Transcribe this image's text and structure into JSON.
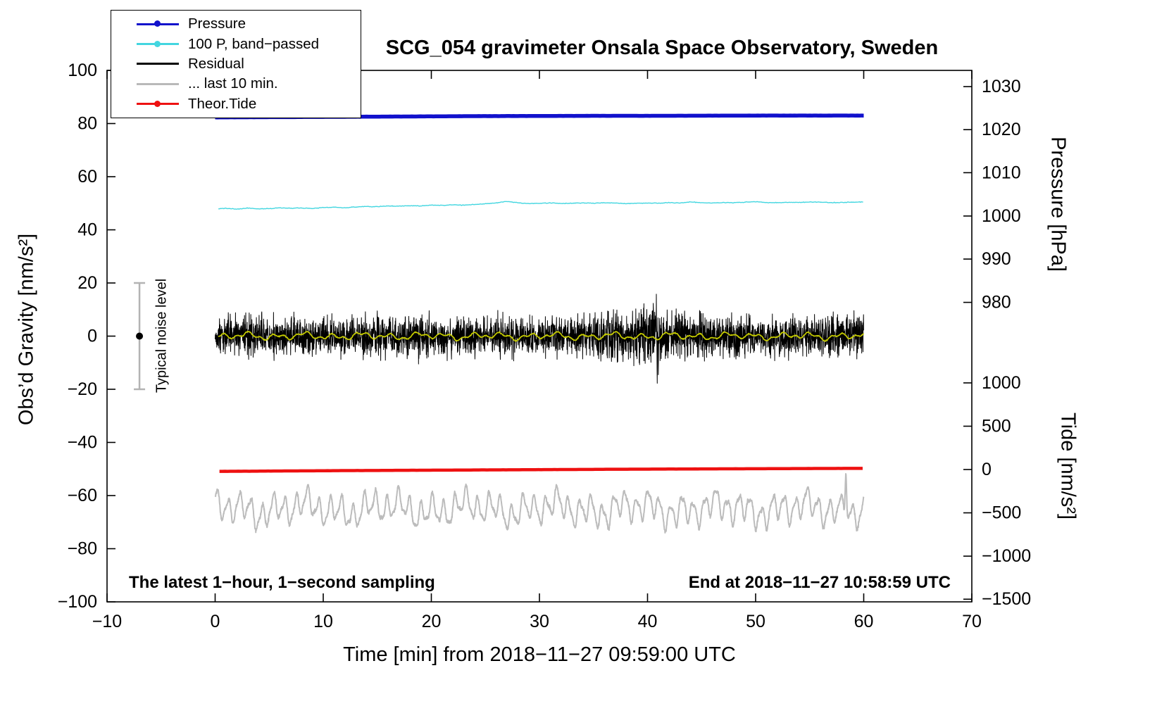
{
  "chart_data": {
    "type": "line",
    "title": "SCG_054 gravimeter Onsala Space Observatory, Sweden",
    "xlabel": "Time [min] from 2018−11−27 09:59:00 UTC",
    "ylabel_left": "Obs’d Gravity [nm/s²]",
    "ylabel_right_pressure": "Pressure [hPa]",
    "ylabel_right_tide": "Tide [nm/s²]",
    "xlim": [
      -10,
      70
    ],
    "xticks": [
      -10,
      0,
      10,
      20,
      30,
      40,
      50,
      60,
      70
    ],
    "ylim_left": [
      -100,
      100
    ],
    "yticks_left": [
      -100,
      -80,
      -60,
      -40,
      -20,
      0,
      20,
      40,
      60,
      80,
      100
    ],
    "pressure_ticks": [
      {
        "label": "1030",
        "pos": 93.9
      },
      {
        "label": "1020",
        "pos": 77.7
      },
      {
        "label": "1010",
        "pos": 61.5
      },
      {
        "label": "1000",
        "pos": 45.2
      },
      {
        "label": "990",
        "pos": 29.0
      },
      {
        "label": "980",
        "pos": 12.7
      }
    ],
    "tide_ticks": [
      {
        "label": "1000",
        "pos": -17.6
      },
      {
        "label": "500",
        "pos": -33.9
      },
      {
        "label": "0",
        "pos": -50.2
      },
      {
        "label": "−500",
        "pos": -66.5
      },
      {
        "label": "−1000",
        "pos": -82.8
      },
      {
        "label": "−1500",
        "pos": -99.0
      }
    ],
    "legend": {
      "items": [
        {
          "label": "Pressure",
          "color": "#1111cc",
          "dot": true
        },
        {
          "label": "100 P, band−passed",
          "color": "#43d6e0",
          "dot": true
        },
        {
          "label": "Residual",
          "color": "#000000",
          "dot": false
        },
        {
          "label": "... last 10 min.",
          "color": "#b9b9b9",
          "dot": false
        },
        {
          "label": "Theor.Tide",
          "color": "#ee1111",
          "dot": true
        }
      ]
    },
    "annotations": {
      "noise_bar": {
        "label": "Typical noise level",
        "x": -7,
        "y_from": -20,
        "y_to": 20,
        "bar_color": "#b3b3b3",
        "dot_color": "#000000"
      },
      "bottom_left": "The latest 1−hour, 1−second sampling",
      "bottom_right": "End at 2018−11−27 10:58:59 UTC"
    },
    "series": [
      {
        "key": "residual-last10min",
        "name": "... last 10 min.",
        "color": "#bcbcbc",
        "width": 2.0,
        "step": 0.02,
        "range": [
          0,
          60
        ],
        "mean": -65,
        "components": [
          {
            "period": 1.05,
            "amp": 4.3,
            "phase": 0.7
          },
          {
            "period": 2.9,
            "amp": 2.2,
            "phase": 2.1
          },
          {
            "period": 0.52,
            "amp": 1.4,
            "phase": 4.0
          },
          {
            "period": 7.7,
            "amp": 1.6,
            "phase": 1.2
          }
        ],
        "noise": 1.1,
        "spike": {
          "t": 58.35,
          "amp": 19,
          "width": 0.1
        }
      },
      {
        "key": "theor-tide",
        "name": "Theor.Tide",
        "color": "#ee1111",
        "width": 4.5,
        "step": 0.25,
        "range": [
          0.4,
          60
        ],
        "points": [
          [
            0.4,
            -50.9
          ],
          [
            10,
            -50.65
          ],
          [
            20,
            -50.45
          ],
          [
            30,
            -50.25
          ],
          [
            40,
            -50.05
          ],
          [
            50,
            -49.9
          ],
          [
            60,
            -49.75
          ]
        ],
        "noise": 0.02
      },
      {
        "key": "residual",
        "name": "Residual",
        "color": "#000000",
        "width": 1.0,
        "step": 0.016666,
        "range": [
          0,
          60
        ],
        "envelope": [
          [
            0,
            10
          ],
          [
            4,
            10.5
          ],
          [
            8,
            10
          ],
          [
            12,
            10.5
          ],
          [
            16,
            11
          ],
          [
            18,
            12
          ],
          [
            19,
            13
          ],
          [
            20,
            11
          ],
          [
            22,
            10.5
          ],
          [
            24,
            10
          ],
          [
            26,
            10.5
          ],
          [
            28,
            11
          ],
          [
            30,
            10
          ],
          [
            32,
            10
          ],
          [
            34,
            10.5
          ],
          [
            35,
            12
          ],
          [
            36,
            14
          ],
          [
            37,
            15
          ],
          [
            38,
            12
          ],
          [
            39,
            13
          ],
          [
            40,
            15
          ],
          [
            40.4,
            25
          ],
          [
            40.8,
            23
          ],
          [
            41.2,
            15
          ],
          [
            42,
            12
          ],
          [
            43,
            14
          ],
          [
            44,
            11
          ],
          [
            45,
            12
          ],
          [
            46,
            11
          ],
          [
            47,
            10.5
          ],
          [
            48,
            12
          ],
          [
            49,
            10.5
          ],
          [
            50,
            10
          ],
          [
            51,
            11
          ],
          [
            52,
            10.5
          ],
          [
            53,
            10
          ],
          [
            54,
            10.5
          ],
          [
            55,
            10
          ],
          [
            56,
            11
          ],
          [
            57,
            12
          ],
          [
            58,
            10.5
          ],
          [
            59,
            12
          ],
          [
            60,
            11
          ]
        ]
      },
      {
        "key": "residual-filtered",
        "name": "Residual band-passed",
        "color": "#c6cc00",
        "width": 1.7,
        "step": 0.05,
        "range": [
          0.3,
          60
        ],
        "mean": 0,
        "components": [
          {
            "period": 2.6,
            "amp": 0.85,
            "phase": 0.4
          },
          {
            "period": 1.1,
            "amp": 0.55,
            "phase": 2.8
          },
          {
            "period": 5.7,
            "amp": 0.45,
            "phase": 5.1
          }
        ],
        "noise": 0.3
      },
      {
        "key": "pressure",
        "name": "Pressure",
        "color": "#1111cc",
        "width": 5.5,
        "step": 0.2,
        "range": [
          0,
          60
        ],
        "points": [
          [
            0,
            82.3
          ],
          [
            5,
            82.4
          ],
          [
            10,
            82.5
          ],
          [
            15,
            82.6
          ],
          [
            20,
            82.7
          ],
          [
            25,
            82.8
          ],
          [
            30,
            82.85
          ],
          [
            35,
            82.9
          ],
          [
            40,
            82.9
          ],
          [
            45,
            82.95
          ],
          [
            50,
            83.0
          ],
          [
            55,
            83.0
          ],
          [
            60,
            83.0
          ]
        ],
        "noise": 0.03
      },
      {
        "key": "pressure-bandpassed",
        "name": "100 P, band-passed",
        "color": "#43d6e0",
        "width": 1.4,
        "step": 0.0833,
        "range": [
          0.3,
          60
        ],
        "points": [
          [
            0.3,
            47.9
          ],
          [
            1,
            48.1
          ],
          [
            2,
            47.8
          ],
          [
            3,
            48.2
          ],
          [
            4,
            47.9
          ],
          [
            5,
            48.0
          ],
          [
            6,
            48.3
          ],
          [
            7,
            48.1
          ],
          [
            8,
            48.2
          ],
          [
            9,
            48.0
          ],
          [
            10,
            48.4
          ],
          [
            11,
            48.5
          ],
          [
            12,
            48.3
          ],
          [
            13,
            48.6
          ],
          [
            14,
            48.8
          ],
          [
            15,
            48.7
          ],
          [
            16,
            49.0
          ],
          [
            17,
            48.9
          ],
          [
            18,
            49.1
          ],
          [
            19,
            49.0
          ],
          [
            20,
            49.3
          ],
          [
            21,
            49.2
          ],
          [
            22,
            49.4
          ],
          [
            23,
            49.3
          ],
          [
            24,
            49.6
          ],
          [
            25,
            49.8
          ],
          [
            26,
            50.1
          ],
          [
            27,
            50.7
          ],
          [
            28,
            50.2
          ],
          [
            29,
            49.9
          ],
          [
            30,
            50.0
          ],
          [
            31,
            50.1
          ],
          [
            32,
            49.9
          ],
          [
            33,
            50.0
          ],
          [
            34,
            50.1
          ],
          [
            35,
            50.0
          ],
          [
            36,
            50.2
          ],
          [
            37,
            50.1
          ],
          [
            38,
            49.9
          ],
          [
            39,
            50.0
          ],
          [
            40,
            50.1
          ],
          [
            41,
            50.0
          ],
          [
            42,
            50.2
          ],
          [
            43,
            50.1
          ],
          [
            44,
            50.5
          ],
          [
            45,
            50.2
          ],
          [
            46,
            50.1
          ],
          [
            47,
            50.3
          ],
          [
            48,
            50.2
          ],
          [
            49,
            50.4
          ],
          [
            50,
            50.6
          ],
          [
            51,
            50.3
          ],
          [
            52,
            50.2
          ],
          [
            53,
            50.4
          ],
          [
            54,
            50.3
          ],
          [
            55,
            50.5
          ],
          [
            56,
            50.4
          ],
          [
            57,
            50.2
          ],
          [
            58,
            50.3
          ],
          [
            59,
            50.4
          ],
          [
            60,
            50.5
          ]
        ],
        "noise": 0.18
      }
    ]
  }
}
